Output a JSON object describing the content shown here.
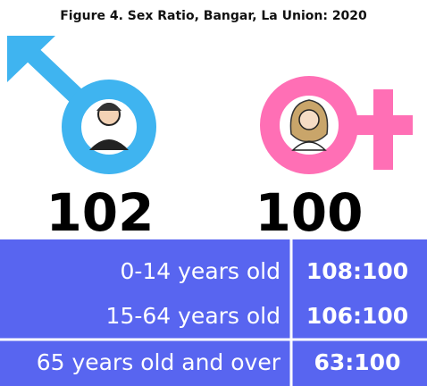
{
  "title": "Figure 4. Sex Ratio, Bangar, La Union: 2020",
  "male": {
    "value": 102
  },
  "female": {
    "value": 100
  },
  "table": {
    "rows": [
      [
        "0-14 years old",
        "108:100"
      ],
      [
        "15-64 years old",
        "106:100"
      ],
      [
        "65 years old and over",
        "63:100"
      ]
    ]
  }
}
